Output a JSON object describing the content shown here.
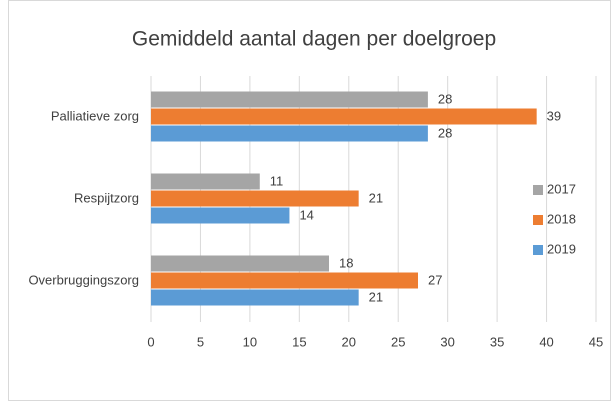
{
  "chart_data": {
    "type": "hbar",
    "title": "Gemiddeld aantal dagen per doelgroep",
    "categories": [
      "Palliatieve zorg",
      "Respijtzorg",
      "Overbruggingszorg"
    ],
    "series": [
      {
        "name": "2017",
        "color": "#a5a5a5",
        "values": [
          28,
          11,
          18
        ]
      },
      {
        "name": "2018",
        "color": "#ed7d31",
        "values": [
          39,
          21,
          27
        ]
      },
      {
        "name": "2019",
        "color": "#5b9bd5",
        "values": [
          28,
          14,
          21
        ]
      }
    ],
    "xlim": [
      0,
      45
    ],
    "xticks": [
      0,
      5,
      10,
      15,
      20,
      25,
      30,
      35,
      40,
      45
    ],
    "grid": true,
    "legend": "right"
  }
}
